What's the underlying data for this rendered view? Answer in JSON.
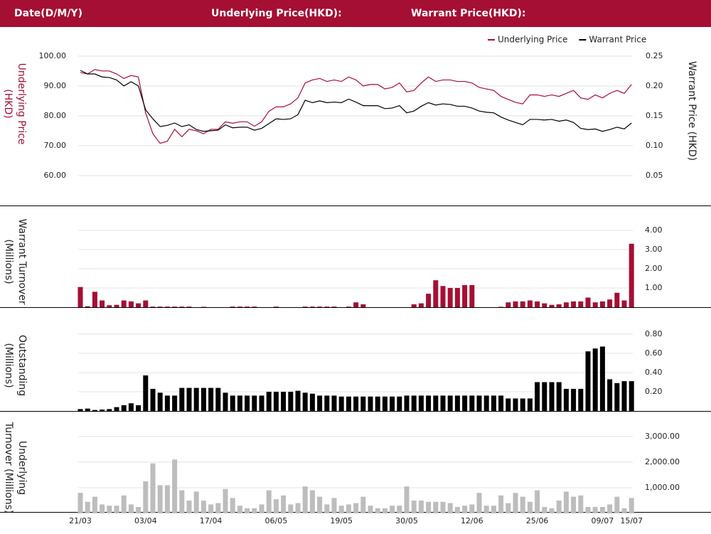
{
  "header": {
    "date": "Date(D/M/Y)",
    "underlying": "Underlying Price(HKD):",
    "warrant": "Warrant Price(HKD):"
  },
  "chart_data": [
    {
      "type": "line",
      "ylabel": "Underlying Price (HKD)",
      "y2label": "Warrant  Price (HKD)",
      "ylim": [
        50,
        104
      ],
      "yticks": [
        {
          "value": 60,
          "label": "60.00"
        },
        {
          "value": 70,
          "label": "70.00"
        },
        {
          "value": 80,
          "label": "80.00"
        },
        {
          "value": 90,
          "label": "90.00"
        },
        {
          "value": 100,
          "label": "100.00"
        }
      ],
      "y2lim": [
        0,
        0.27
      ],
      "y2ticks": [
        0.05,
        {
          "value": 0.1,
          "label": "0.10"
        },
        0.15,
        {
          "value": 0.2,
          "label": "0.20"
        },
        0.25
      ],
      "grid": true,
      "legend": "top-right",
      "series": [
        {
          "name": "Underlying Price",
          "color": "#a50f34",
          "values": [
            94.5,
            94,
            95.5,
            95,
            95,
            94,
            92.5,
            93.5,
            93,
            81,
            74,
            70.8,
            71.5,
            75.5,
            73,
            75.5,
            75,
            74,
            75.5,
            75.5,
            78,
            77.5,
            78,
            78,
            76.5,
            78,
            81.5,
            83,
            83,
            84,
            86,
            91,
            92,
            92.5,
            91.5,
            92,
            91.5,
            93,
            92,
            90,
            90.5,
            90.5,
            89,
            89.5,
            91,
            88,
            88.5,
            91,
            93,
            91.5,
            92,
            92,
            91.5,
            91.5,
            91,
            89.5,
            89,
            88.5,
            86.5,
            85.5,
            84.5,
            84,
            87,
            87,
            86.5,
            87,
            86.5,
            87.5,
            88.5,
            86,
            85.5,
            87,
            86,
            87.5,
            88.5,
            87.5,
            90.5
          ]
        },
        {
          "name": "Warrant Price",
          "color": "#000000",
          "axis": "y2",
          "values": [
            0.226,
            0.22,
            0.22,
            0.215,
            0.214,
            0.21,
            0.2,
            0.207,
            0.2,
            0.16,
            0.145,
            0.132,
            0.134,
            0.138,
            0.132,
            0.135,
            0.127,
            0.124,
            0.125,
            0.126,
            0.135,
            0.13,
            0.131,
            0.131,
            0.126,
            0.129,
            0.137,
            0.145,
            0.144,
            0.145,
            0.152,
            0.176,
            0.172,
            0.175,
            0.172,
            0.173,
            0.172,
            0.178,
            0.173,
            0.167,
            0.167,
            0.167,
            0.162,
            0.163,
            0.167,
            0.155,
            0.158,
            0.166,
            0.172,
            0.168,
            0.17,
            0.169,
            0.166,
            0.166,
            0.163,
            0.158,
            0.156,
            0.155,
            0.148,
            0.143,
            0.139,
            0.135,
            0.144,
            0.144,
            0.143,
            0.144,
            0.141,
            0.143,
            0.139,
            0.129,
            0.127,
            0.128,
            0.124,
            0.127,
            0.131,
            0.128,
            0.138
          ]
        }
      ]
    },
    {
      "type": "bar",
      "ylabel": "Warrant  Turnover (Millions)",
      "color": "#a50f34",
      "grid": true,
      "ylim": [
        0,
        4.4
      ],
      "yticks": [
        {
          "value": 1,
          "label": "1.00"
        },
        {
          "value": 2,
          "label": "2.00"
        },
        {
          "value": 3,
          "label": "3.00"
        },
        {
          "value": 4,
          "label": "4.00"
        }
      ],
      "values": [
        1.05,
        0.05,
        0.8,
        0.35,
        0.1,
        0.12,
        0.35,
        0.3,
        0.2,
        0.35,
        0.03,
        0.03,
        0.03,
        0.03,
        0.03,
        0.03,
        0,
        0.02,
        0,
        0,
        0,
        0.03,
        0.03,
        0.03,
        0.03,
        0,
        0,
        0.03,
        0,
        0,
        0,
        0.03,
        0.03,
        0.03,
        0.03,
        0.03,
        0,
        0.03,
        0.25,
        0.15,
        0,
        0,
        0,
        0,
        0,
        0,
        0.15,
        0.2,
        0.7,
        1.4,
        1.1,
        1,
        1,
        1.15,
        1.15,
        0,
        0,
        0,
        0.02,
        0.25,
        0.3,
        0.3,
        0.35,
        0.3,
        0.2,
        0.12,
        0.15,
        0.25,
        0.3,
        0.3,
        0.5,
        0.25,
        0.3,
        0.4,
        0.75,
        0.35,
        3.3
      ]
    },
    {
      "type": "bar",
      "ylabel": "Outstanding (Millions)",
      "color": "#000000",
      "grid": true,
      "ylim": [
        0,
        0.88
      ],
      "yticks": [
        {
          "value": 0.2,
          "label": "0.20"
        },
        {
          "value": 0.4,
          "label": "0.40"
        },
        {
          "value": 0.6,
          "label": "0.60"
        },
        {
          "value": 0.8,
          "label": "0.80"
        }
      ],
      "values": [
        0.02,
        0.025,
        0.01,
        0.015,
        0.02,
        0.04,
        0.06,
        0.08,
        0.06,
        0.37,
        0.23,
        0.19,
        0.16,
        0.16,
        0.24,
        0.24,
        0.24,
        0.24,
        0.24,
        0.24,
        0.19,
        0.16,
        0.16,
        0.16,
        0.16,
        0.16,
        0.2,
        0.2,
        0.2,
        0.2,
        0.21,
        0.19,
        0.18,
        0.16,
        0.16,
        0.16,
        0.15,
        0.15,
        0.15,
        0.15,
        0.15,
        0.15,
        0.15,
        0.15,
        0.15,
        0.16,
        0.16,
        0.16,
        0.16,
        0.16,
        0.16,
        0.16,
        0.16,
        0.16,
        0.16,
        0.16,
        0.16,
        0.16,
        0.16,
        0.13,
        0.13,
        0.13,
        0.13,
        0.3,
        0.3,
        0.3,
        0.3,
        0.23,
        0.23,
        0.23,
        0.62,
        0.65,
        0.67,
        0.33,
        0.29,
        0.31,
        0.31
      ]
    },
    {
      "type": "bar",
      "ylabel": "Underlying Turnover (Millions)",
      "color": "#bdbdbd",
      "grid": true,
      "ylim": [
        0,
        3300
      ],
      "yticks": [
        {
          "value": 1000,
          "label": "1,000.00"
        },
        {
          "value": 2000,
          "label": "2,000.00"
        },
        {
          "value": 3000,
          "label": "3,000.00"
        }
      ],
      "values": [
        800,
        450,
        650,
        350,
        300,
        300,
        700,
        350,
        250,
        1250,
        1950,
        1100,
        1100,
        2100,
        900,
        500,
        850,
        500,
        350,
        400,
        950,
        600,
        300,
        200,
        200,
        350,
        900,
        550,
        700,
        350,
        400,
        1050,
        900,
        650,
        350,
        600,
        300,
        350,
        400,
        650,
        300,
        200,
        200,
        300,
        300,
        1050,
        500,
        500,
        450,
        450,
        450,
        400,
        250,
        300,
        350,
        800,
        300,
        300,
        700,
        400,
        800,
        650,
        450,
        900,
        250,
        200,
        500,
        850,
        650,
        700,
        250,
        250,
        250,
        350,
        650,
        200,
        600
      ],
      "categories": [
        "21/03",
        null,
        null,
        null,
        null,
        null,
        null,
        null,
        null,
        "03/04",
        null,
        null,
        null,
        null,
        null,
        null,
        null,
        null,
        "17/04",
        null,
        null,
        null,
        null,
        null,
        null,
        null,
        null,
        "06/05",
        null,
        null,
        null,
        null,
        null,
        null,
        null,
        null,
        "19/05",
        null,
        null,
        null,
        null,
        null,
        null,
        null,
        null,
        "30/05",
        null,
        null,
        null,
        null,
        null,
        null,
        null,
        null,
        "12/06",
        null,
        null,
        null,
        null,
        null,
        null,
        null,
        null,
        "25/06",
        null,
        null,
        null,
        null,
        null,
        null,
        null,
        null,
        "09/07",
        null,
        null,
        null,
        "15/07"
      ]
    }
  ]
}
